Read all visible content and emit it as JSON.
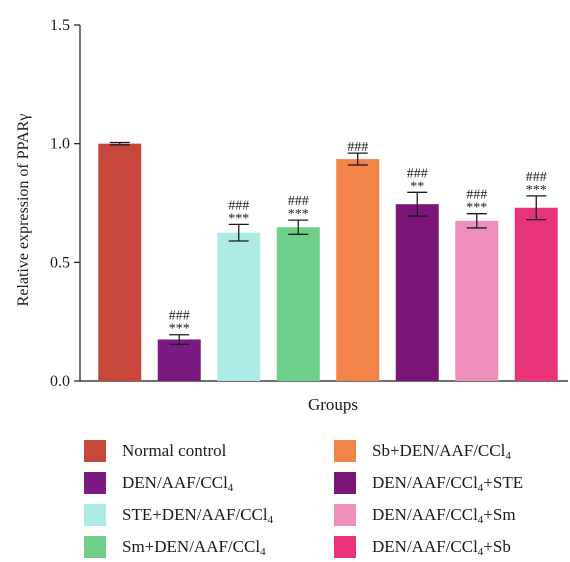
{
  "chart_data": {
    "type": "bar",
    "ylabel": "Relative expression of PPARγ",
    "xlabel": "Groups",
    "ylim": [
      0,
      1.5
    ],
    "yticks": [
      "0.0",
      "0.5",
      "1.0",
      "1.5"
    ],
    "categories": [
      "Normal control",
      "DEN/AAF/CCl4",
      "STE+DEN/AAF/CCl4",
      "Sm+DEN/AAF/CCl4",
      "Sb+DEN/AAF/CCl4",
      "DEN/AAF/CCl4+STE",
      "DEN/AAF/CCl4+Sm",
      "DEN/AAF/CCl4+Sb"
    ],
    "values": [
      1.0,
      0.175,
      0.625,
      0.648,
      0.935,
      0.745,
      0.675,
      0.73
    ],
    "errors": [
      0.005,
      0.02,
      0.035,
      0.03,
      0.025,
      0.05,
      0.03,
      0.05
    ],
    "colors": [
      "#c8473b",
      "#7c1a82",
      "#aeeae6",
      "#6ecf8a",
      "#f2844a",
      "#7b1678",
      "#ef8fbd",
      "#e8337a"
    ],
    "annotations": [
      [],
      [
        "###",
        "***"
      ],
      [
        "###",
        "***"
      ],
      [
        "###",
        "***"
      ],
      [
        "###"
      ],
      [
        "###",
        "**"
      ],
      [
        "###",
        "***"
      ],
      [
        "###",
        "***"
      ]
    ]
  },
  "legend": [
    {
      "name": "Normal control",
      "text": "Normal control",
      "sub": "",
      "tail": "",
      "color": "#c8473b"
    },
    {
      "name": "DEN/AAF/CCl4",
      "text": "DEN/AAF/CCl",
      "sub": "4",
      "tail": "",
      "color": "#7c1a82"
    },
    {
      "name": "STE+DEN/AAF/CCl4",
      "text": "STE+DEN/AAF/CCl",
      "sub": "4",
      "tail": "",
      "color": "#aeeae6"
    },
    {
      "name": "Sm+DEN/AAF/CCl4",
      "text": "Sm+DEN/AAF/CCl",
      "sub": "4",
      "tail": "",
      "color": "#6ecf8a"
    },
    {
      "name": "Sb+DEN/AAF/CCl4",
      "text": "Sb+DEN/AAF/CCl",
      "sub": "4",
      "tail": "",
      "color": "#f2844a"
    },
    {
      "name": "DEN/AAF/CCl4+STE",
      "text": "DEN/AAF/CCl",
      "sub": "4",
      "tail": "+STE",
      "color": "#7b1678"
    },
    {
      "name": "DEN/AAF/CCl4+Sm",
      "text": "DEN/AAF/CCl",
      "sub": "4",
      "tail": "+Sm",
      "color": "#ef8fbd"
    },
    {
      "name": "DEN/AAF/CCl4+Sb",
      "text": "DEN/AAF/CCl",
      "sub": "4",
      "tail": "+Sb",
      "color": "#e8337a"
    }
  ]
}
